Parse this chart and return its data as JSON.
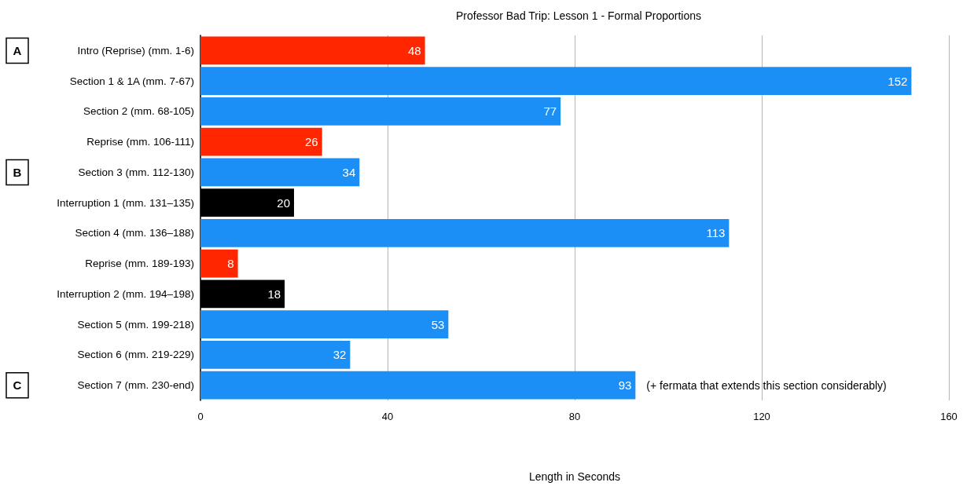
{
  "chart_data": {
    "type": "bar",
    "orientation": "horizontal",
    "title": "Professor Bad Trip: Lesson 1 - Formal Proportions",
    "xlabel": "Length in Seconds",
    "categories": [
      "Intro (Reprise) (mm. 1-6)",
      "Section 1 & 1A (mm. 7-67)",
      "Section 2 (mm. 68-105)",
      "Reprise (mm. 106-111)",
      "Section 3 (mm. 112-130)",
      "Interruption 1 (mm. 131–135)",
      "Section 4 (mm. 136–188)",
      "Reprise (mm. 189-193)",
      "Interruption 2 (mm. 194–198)",
      "Section 5 (mm. 199-218)",
      "Section 6 (mm. 219-229)",
      "Section 7 (mm. 230-end)"
    ],
    "values": [
      48,
      152,
      77,
      26,
      34,
      20,
      113,
      8,
      18,
      53,
      32,
      93
    ],
    "colors": [
      "#ff2600",
      "#1b8ff5",
      "#1b8ff5",
      "#ff2600",
      "#1b8ff5",
      "#000000",
      "#1b8ff5",
      "#ff2600",
      "#000000",
      "#1b8ff5",
      "#1b8ff5",
      "#1b8ff5"
    ],
    "xlim": [
      0,
      160
    ],
    "xticks": [
      0,
      40,
      80,
      120,
      160
    ],
    "grid": "x",
    "data_labels": true,
    "annotations": [
      "A",
      "B",
      "C",
      {
        "text": "(+ fermata that extends this section considerably)",
        "x": 93,
        "y": "Section 7 (mm. 230-end)"
      }
    ]
  }
}
